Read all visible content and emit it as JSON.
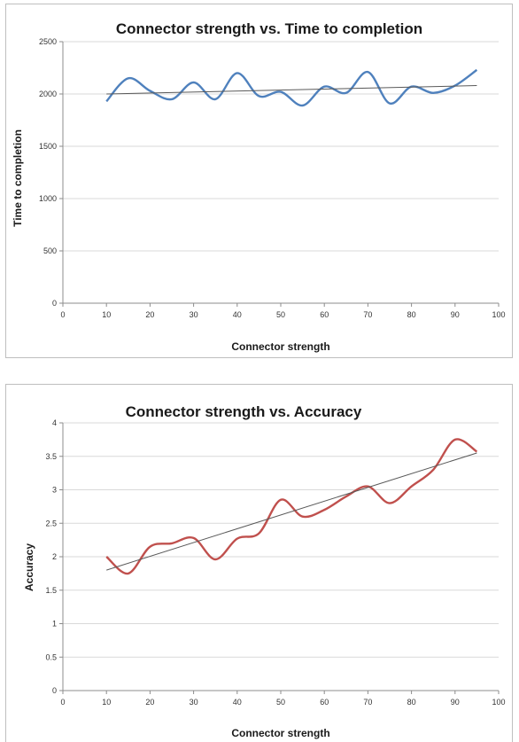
{
  "chart_data": [
    {
      "type": "line",
      "title": "Connector strength vs. Time to completion",
      "xlabel": "Connector strength",
      "ylabel": "Time to completion",
      "xlim": [
        0,
        100
      ],
      "ylim": [
        0,
        2500
      ],
      "x_ticks": [
        0,
        10,
        20,
        30,
        40,
        50,
        60,
        70,
        80,
        90,
        100
      ],
      "y_ticks": [
        0,
        500,
        1000,
        1500,
        2000,
        2500
      ],
      "grid": true,
      "legend": "none",
      "series": [
        {
          "color": "#4f81bd",
          "x": [
            10,
            15,
            20,
            25,
            30,
            35,
            40,
            45,
            50,
            55,
            60,
            65,
            70,
            75,
            80,
            85,
            90,
            95
          ],
          "y": [
            1930,
            2150,
            2030,
            1950,
            2110,
            1950,
            2200,
            1980,
            2020,
            1890,
            2070,
            2010,
            2210,
            1910,
            2070,
            2010,
            2080,
            2230
          ]
        }
      ],
      "trendline": {
        "color": "#595959",
        "x": [
          10,
          95
        ],
        "y": [
          2000,
          2080
        ]
      }
    },
    {
      "type": "line",
      "title": "Connector strength vs. Accuracy",
      "xlabel": "Connector strength",
      "ylabel": "Accuracy",
      "xlim": [
        0,
        100
      ],
      "ylim": [
        0,
        4
      ],
      "x_ticks": [
        0,
        10,
        20,
        30,
        40,
        50,
        60,
        70,
        80,
        90,
        100
      ],
      "y_ticks": [
        "0",
        "0.5",
        "1",
        "1.5",
        "2",
        "2.5",
        "3",
        "3.5",
        "4"
      ],
      "grid": true,
      "legend": "none",
      "series": [
        {
          "color": "#c0504d",
          "x": [
            10,
            15,
            20,
            25,
            30,
            35,
            40,
            45,
            50,
            55,
            60,
            65,
            70,
            75,
            80,
            85,
            90,
            95
          ],
          "y": [
            2.0,
            1.75,
            2.15,
            2.2,
            2.28,
            1.96,
            2.27,
            2.35,
            2.85,
            2.6,
            2.7,
            2.9,
            3.05,
            2.8,
            3.05,
            3.3,
            3.75,
            3.57
          ]
        }
      ],
      "trendline": {
        "color": "#595959",
        "x": [
          10,
          95
        ],
        "y": [
          1.8,
          3.55
        ]
      }
    }
  ]
}
